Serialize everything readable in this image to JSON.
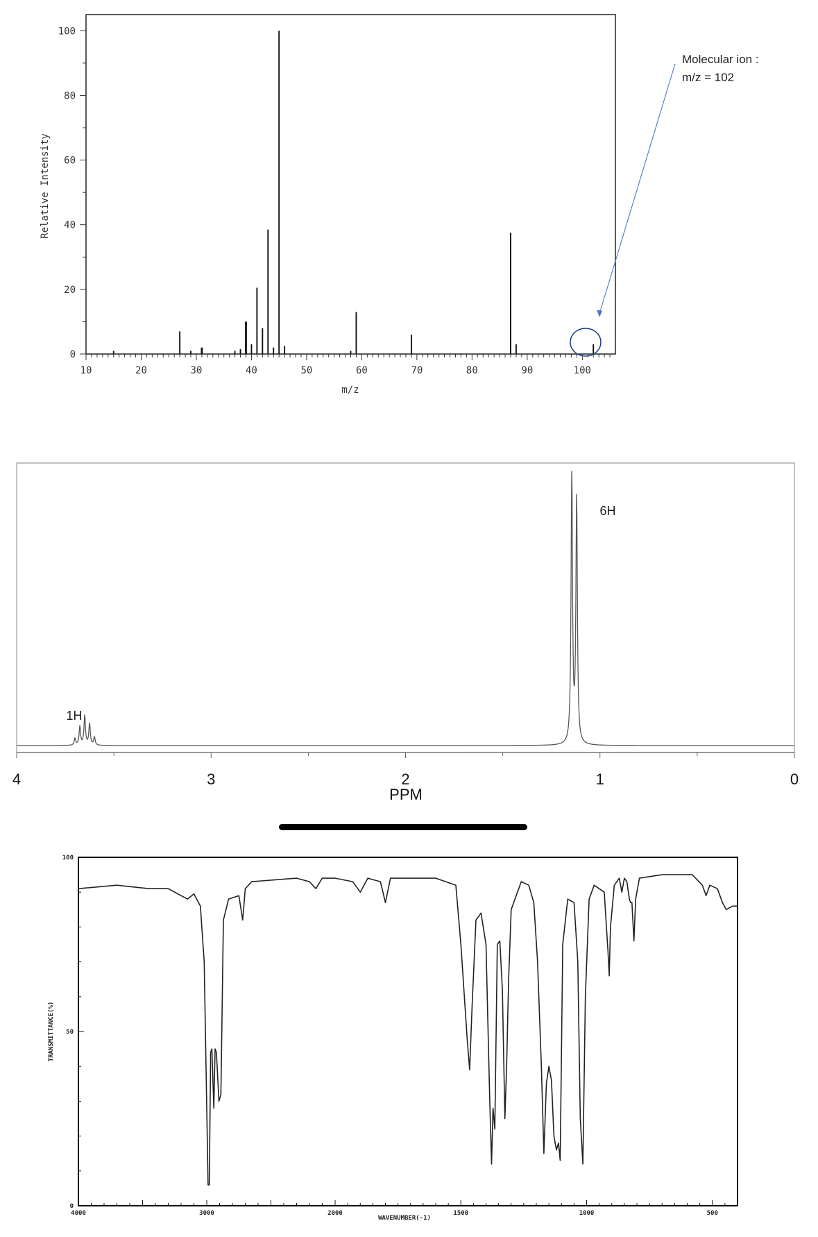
{
  "chart_data": [
    {
      "type": "bar",
      "xlabel": "m/z",
      "ylabel": "Relative Intensity",
      "xlim": [
        10,
        106
      ],
      "ylim": [
        0,
        105
      ],
      "xticks": [
        "10",
        "20",
        "30",
        "40",
        "50",
        "60",
        "70",
        "80",
        "90",
        "100"
      ],
      "yticks": [
        "0",
        "20",
        "40",
        "60",
        "80",
        "100"
      ],
      "grid": false,
      "x": [
        15,
        27,
        29,
        31,
        37,
        38,
        39,
        40,
        41,
        42,
        43,
        44,
        45,
        46,
        58,
        59,
        69,
        87,
        88,
        102
      ],
      "values": [
        1,
        7,
        1,
        2,
        1,
        1.5,
        10,
        3,
        20.5,
        8,
        38.5,
        2,
        100,
        2.5,
        1,
        13,
        6,
        37.5,
        3,
        3
      ],
      "annotation": {
        "line1": "Molecular ion :",
        "line2": "m/z = 102"
      }
    },
    {
      "type": "line",
      "xlabel": "PPM",
      "xlim": [
        4,
        0
      ],
      "xticks": [
        "4",
        "3",
        "2",
        "1",
        "0"
      ],
      "grid": false,
      "peaks": [
        {
          "ppm": 3.7,
          "height": 0.025
        },
        {
          "ppm": 3.675,
          "height": 0.07
        },
        {
          "ppm": 3.65,
          "height": 0.11
        },
        {
          "ppm": 3.625,
          "height": 0.08
        },
        {
          "ppm": 3.6,
          "height": 0.03
        },
        {
          "ppm": 1.145,
          "height": 1.0
        },
        {
          "ppm": 1.12,
          "height": 0.91
        }
      ],
      "labels": [
        {
          "text": "1H",
          "ppm": 3.65
        },
        {
          "text": "6H",
          "ppm": 1.13
        }
      ]
    },
    {
      "type": "line",
      "xlabel": "WAVENUMBER(-1)",
      "ylabel": "TRANSMITTANCE(%)",
      "xlim": [
        4000,
        400
      ],
      "ylim": [
        0,
        100
      ],
      "xticks": [
        "4000",
        "3000",
        "2000",
        "1500",
        "1000",
        "500"
      ],
      "yticks": [
        "0",
        "50",
        "100"
      ],
      "grid": false,
      "points": [
        [
          4000,
          91
        ],
        [
          3700,
          92
        ],
        [
          3450,
          91
        ],
        [
          3300,
          91
        ],
        [
          3150,
          88
        ],
        [
          3100,
          89.5
        ],
        [
          3050,
          86
        ],
        [
          3020,
          70
        ],
        [
          3000,
          28
        ],
        [
          2990,
          6
        ],
        [
          2980,
          6
        ],
        [
          2970,
          44
        ],
        [
          2960,
          45
        ],
        [
          2945,
          28
        ],
        [
          2935,
          45
        ],
        [
          2925,
          44
        ],
        [
          2905,
          30
        ],
        [
          2890,
          32
        ],
        [
          2870,
          82
        ],
        [
          2830,
          88
        ],
        [
          2750,
          89
        ],
        [
          2720,
          82
        ],
        [
          2700,
          91
        ],
        [
          2650,
          93
        ],
        [
          2300,
          94
        ],
        [
          2200,
          93
        ],
        [
          2150,
          91
        ],
        [
          2100,
          94
        ],
        [
          2000,
          94
        ],
        [
          1930,
          93
        ],
        [
          1900,
          90
        ],
        [
          1870,
          94
        ],
        [
          1820,
          93
        ],
        [
          1800,
          87
        ],
        [
          1780,
          94
        ],
        [
          1600,
          94
        ],
        [
          1520,
          92
        ],
        [
          1500,
          75
        ],
        [
          1475,
          48
        ],
        [
          1465,
          39
        ],
        [
          1455,
          58
        ],
        [
          1440,
          82
        ],
        [
          1420,
          84
        ],
        [
          1400,
          75
        ],
        [
          1385,
          30
        ],
        [
          1378,
          12
        ],
        [
          1372,
          28
        ],
        [
          1365,
          22
        ],
        [
          1355,
          75
        ],
        [
          1345,
          76
        ],
        [
          1335,
          62
        ],
        [
          1325,
          25
        ],
        [
          1318,
          40
        ],
        [
          1310,
          65
        ],
        [
          1300,
          85
        ],
        [
          1260,
          93
        ],
        [
          1230,
          92
        ],
        [
          1210,
          87
        ],
        [
          1195,
          70
        ],
        [
          1180,
          40
        ],
        [
          1170,
          15
        ],
        [
          1160,
          35
        ],
        [
          1150,
          40
        ],
        [
          1140,
          36
        ],
        [
          1130,
          20
        ],
        [
          1120,
          16
        ],
        [
          1112,
          18
        ],
        [
          1105,
          13
        ],
        [
          1095,
          75
        ],
        [
          1075,
          88
        ],
        [
          1050,
          87
        ],
        [
          1035,
          70
        ],
        [
          1025,
          25
        ],
        [
          1015,
          12
        ],
        [
          1005,
          60
        ],
        [
          990,
          88
        ],
        [
          970,
          92
        ],
        [
          930,
          90
        ],
        [
          915,
          73
        ],
        [
          910,
          66
        ],
        [
          905,
          80
        ],
        [
          890,
          92
        ],
        [
          870,
          94
        ],
        [
          860,
          90
        ],
        [
          850,
          94
        ],
        [
          840,
          93
        ],
        [
          830,
          88
        ],
        [
          825,
          87
        ],
        [
          820,
          87
        ],
        [
          812,
          76
        ],
        [
          805,
          88
        ],
        [
          790,
          94
        ],
        [
          700,
          95
        ],
        [
          580,
          95
        ],
        [
          540,
          92
        ],
        [
          525,
          89
        ],
        [
          510,
          92
        ],
        [
          480,
          91
        ],
        [
          460,
          87
        ],
        [
          445,
          85
        ],
        [
          420,
          86
        ],
        [
          400,
          86
        ]
      ]
    }
  ]
}
